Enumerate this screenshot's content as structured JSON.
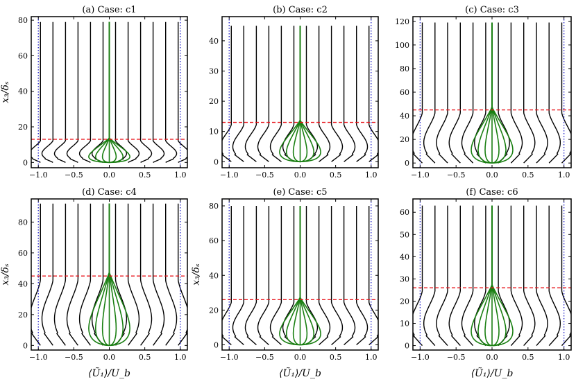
{
  "chart_data": [
    {
      "type": "line",
      "title": "(a) Case: c1",
      "ylabel": "x₃/δₛ",
      "xlabel": "",
      "xlim": [
        -1.1,
        1.1
      ],
      "ylim": [
        -3,
        82
      ],
      "yticks": [
        0,
        20,
        40,
        60,
        80
      ],
      "xticks": [
        -1.0,
        -0.5,
        0.0,
        0.5,
        1.0
      ],
      "xtick_labels": [
        "−1.0",
        "−0.5",
        "0.0",
        "0.5",
        "1.0"
      ],
      "red_dashed_y": 13,
      "blue_dotted_x": [
        -1.0,
        1.0
      ],
      "profile_top": 79,
      "n_black_profiles": 12,
      "n_green_profiles": 7
    },
    {
      "type": "line",
      "title": "(b) Case: c2",
      "ylabel": "",
      "xlabel": "",
      "xlim": [
        -1.1,
        1.1
      ],
      "ylim": [
        -2,
        48
      ],
      "yticks": [
        0,
        10,
        20,
        30,
        40
      ],
      "xticks": [
        -1.0,
        -0.5,
        0.0,
        0.5,
        1.0
      ],
      "xtick_labels": [
        "−1.0",
        "−0.5",
        "0.0",
        "0.5",
        "1.0"
      ],
      "red_dashed_y": 13,
      "blue_dotted_x": [
        -1.0,
        1.0
      ],
      "profile_top": 45,
      "n_black_profiles": 12,
      "n_green_profiles": 7
    },
    {
      "type": "line",
      "title": "(c) Case: c3",
      "ylabel": "",
      "xlabel": "",
      "xlim": [
        -1.1,
        1.1
      ],
      "ylim": [
        -4,
        124
      ],
      "yticks": [
        0,
        20,
        40,
        60,
        80,
        100,
        120
      ],
      "xticks": [
        -1.0,
        -0.5,
        0.0,
        0.5,
        1.0
      ],
      "xtick_labels": [
        "−1.0",
        "−0.5",
        "0.0",
        "0.5",
        "1.0"
      ],
      "red_dashed_y": 45,
      "blue_dotted_x": [
        -1.0,
        1.0
      ],
      "profile_top": 119,
      "n_black_profiles": 12,
      "n_green_profiles": 7
    },
    {
      "type": "line",
      "title": "(d) Case: c4",
      "ylabel": "x₃/δₛ",
      "xlabel": "⟨Ũ₁⟩/U_b",
      "xlim": [
        -1.1,
        1.1
      ],
      "ylim": [
        -3,
        95
      ],
      "yticks": [
        0,
        20,
        40,
        60,
        80
      ],
      "xticks": [
        -1.0,
        -0.5,
        0.0,
        0.5,
        1.0
      ],
      "xtick_labels": [
        "−1.0",
        "−0.5",
        "0.0",
        "0.5",
        "1.0"
      ],
      "red_dashed_y": 45,
      "blue_dotted_x": [
        -1.0,
        1.0
      ],
      "profile_top": 92,
      "n_black_profiles": 12,
      "n_green_profiles": 7
    },
    {
      "type": "line",
      "title": "(e) Case: c5",
      "ylabel": "x₃/δₛ",
      "xlabel": "⟨Ũ₁⟩/U_b",
      "xlim": [
        -1.1,
        1.1
      ],
      "ylim": [
        -3,
        84
      ],
      "yticks": [
        0,
        20,
        40,
        60,
        80
      ],
      "xticks": [
        -1.0,
        -0.5,
        0.0,
        0.5,
        1.0
      ],
      "xtick_labels": [
        "−1.0",
        "−0.5",
        "0.0",
        "0.5",
        "1.0"
      ],
      "red_dashed_y": 26,
      "blue_dotted_x": [
        -1.0,
        1.0
      ],
      "profile_top": 80,
      "n_black_profiles": 12,
      "n_green_profiles": 7
    },
    {
      "type": "line",
      "title": "(f) Case: c6",
      "ylabel": "",
      "xlabel": "⟨Ũ₁⟩/U_b",
      "xlim": [
        -1.1,
        1.1
      ],
      "ylim": [
        -2,
        66
      ],
      "yticks": [
        0,
        10,
        20,
        30,
        40,
        50,
        60
      ],
      "xticks": [
        -1.0,
        -0.5,
        0.0,
        0.5,
        1.0
      ],
      "xtick_labels": [
        "−1.0",
        "−0.5",
        "0.0",
        "0.5",
        "1.0"
      ],
      "red_dashed_y": 26,
      "blue_dotted_x": [
        -1.0,
        1.0
      ],
      "profile_top": 63,
      "n_black_profiles": 12,
      "n_green_profiles": 7
    }
  ],
  "colors": {
    "black_profiles": "#000000",
    "green_profiles": "#1a7f12",
    "red_dashed": "#e8141b",
    "blue_dotted": "#1f1fc8"
  }
}
